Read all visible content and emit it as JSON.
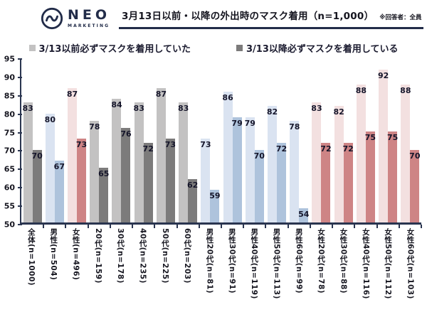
{
  "logo": {
    "name": "NEO",
    "sub": "MARKETING"
  },
  "header": {
    "title": "3月13日以前・以降の外出時のマスク着用（n=1,000）",
    "note": "※回答者：全員"
  },
  "legend": [
    {
      "label": "3/13以前必ずマスクを着用していた",
      "color": "#c3c2c2"
    },
    {
      "label": "3/13以降必ずマスクを着用している",
      "color": "#7c7b7b"
    }
  ],
  "theme": {
    "brand_navy": "#222c49",
    "axis_color": "#2a3550"
  },
  "chart_data": {
    "type": "bar",
    "title": "3月13日以前・以降の外出時のマスク着用（n=1,000）",
    "ylabel": "",
    "xlabel": "",
    "ylim": [
      50,
      95
    ],
    "yticks": [
      50,
      55,
      60,
      65,
      70,
      75,
      80,
      85,
      90,
      95
    ],
    "grid": false,
    "legend_position": "top",
    "series": [
      {
        "name": "3/13以前必ずマスクを着用していた"
      },
      {
        "name": "3/13以降必ずマスクを着用している"
      }
    ],
    "colors": {
      "gray": [
        "#c3c2c2",
        "#7c7b7b"
      ],
      "blue": [
        "#dae3f1",
        "#aec3dc"
      ],
      "pink": [
        "#f3e0e0",
        "#ce8485"
      ]
    },
    "groups": [
      {
        "label": "全体(n=1000)",
        "before": 83,
        "after": 70,
        "palette": "gray"
      },
      {
        "label": "男性(n=504)",
        "before": 80,
        "after": 67,
        "palette": "blue"
      },
      {
        "label": "女性(n=496)",
        "before": 87,
        "after": 73,
        "palette": "pink"
      },
      {
        "label": "20代(n=159)",
        "before": 78,
        "after": 65,
        "palette": "gray"
      },
      {
        "label": "30代(n=178)",
        "before": 84,
        "after": 76,
        "palette": "gray"
      },
      {
        "label": "40代(n=235)",
        "before": 83,
        "after": 72,
        "palette": "gray"
      },
      {
        "label": "50代(n=225)",
        "before": 87,
        "after": 73,
        "palette": "gray"
      },
      {
        "label": "60代(n=203)",
        "before": 83,
        "after": 62,
        "palette": "gray"
      },
      {
        "label": "男性20代(n=81)",
        "before": 73,
        "after": 59,
        "palette": "blue"
      },
      {
        "label": "男性30代(n=91)",
        "before": 86,
        "after": 79,
        "palette": "blue"
      },
      {
        "label": "男性40代(n=119)",
        "before": 79,
        "after": 70,
        "palette": "blue"
      },
      {
        "label": "男性50代(n=113)",
        "before": 82,
        "after": 72,
        "palette": "blue"
      },
      {
        "label": "男性60代(n=99)",
        "before": 78,
        "after": 54,
        "palette": "blue"
      },
      {
        "label": "女性20代(n=78)",
        "before": 83,
        "after": 72,
        "palette": "pink"
      },
      {
        "label": "女性30代(n=88)",
        "before": 82,
        "after": 72,
        "palette": "pink"
      },
      {
        "label": "女性40代(n=116)",
        "before": 88,
        "after": 75,
        "palette": "pink"
      },
      {
        "label": "女性50代(n=112)",
        "before": 92,
        "after": 75,
        "palette": "pink"
      },
      {
        "label": "女性60代(n=103)",
        "before": 88,
        "after": 70,
        "palette": "pink"
      }
    ]
  }
}
